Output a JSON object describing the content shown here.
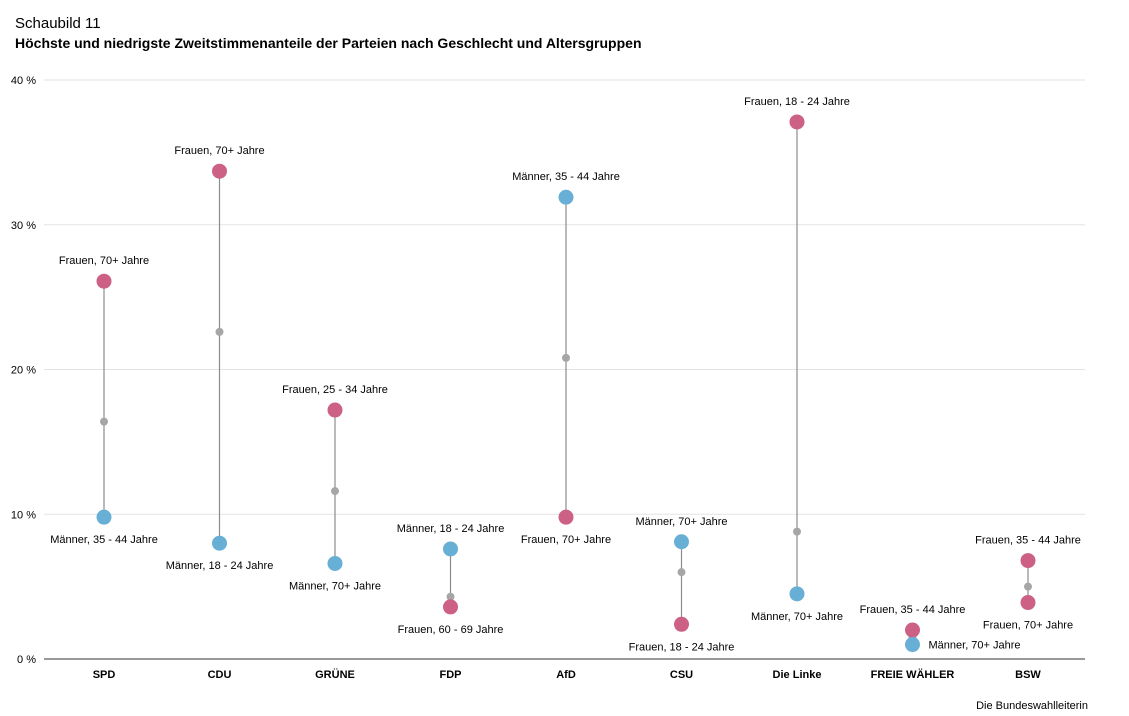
{
  "header": {
    "supertitle": "Schaubild 11",
    "title": "Höchste und niedrigste Zweitstimmenanteile der Parteien nach Geschlecht und Altersgruppen"
  },
  "source": "Die Bundeswahlleiterin",
  "colors": {
    "frauen": "#cc6085",
    "maenner": "#68afd5",
    "average": "#a6a6a6",
    "connector": "#8c8c8c",
    "grid": "#e3e3e3",
    "axis": "#333333"
  },
  "chart_data": {
    "type": "scatter",
    "subtype": "dumbbell",
    "ylim": [
      0,
      40
    ],
    "yticks": [
      0,
      10,
      20,
      30,
      40
    ],
    "ytick_labels": [
      "0 %",
      "10 %",
      "20 %",
      "30 %",
      "40 %"
    ],
    "grid": true,
    "categories": [
      "SPD",
      "CDU",
      "GRÜNE",
      "FDP",
      "AfD",
      "CSU",
      "Die Linke",
      "FREIE WÄHLER",
      "BSW"
    ],
    "parties": [
      {
        "party": "SPD",
        "high": {
          "value": 26.1,
          "group": "frauen",
          "label": "Frauen, 70+ Jahre"
        },
        "low": {
          "value": 9.8,
          "group": "maenner",
          "label": "Männer, 35 - 44 Jahre"
        },
        "average": 16.4
      },
      {
        "party": "CDU",
        "high": {
          "value": 33.7,
          "group": "frauen",
          "label": "Frauen, 70+ Jahre"
        },
        "low": {
          "value": 8.0,
          "group": "maenner",
          "label": "Männer, 18 - 24 Jahre"
        },
        "average": 22.6
      },
      {
        "party": "GRÜNE",
        "high": {
          "value": 17.2,
          "group": "frauen",
          "label": "Frauen, 25 - 34 Jahre"
        },
        "low": {
          "value": 6.6,
          "group": "maenner",
          "label": "Männer, 70+ Jahre"
        },
        "average": 11.6
      },
      {
        "party": "FDP",
        "high": {
          "value": 7.6,
          "group": "maenner",
          "label": "Männer, 18 - 24 Jahre"
        },
        "low": {
          "value": 3.6,
          "group": "frauen",
          "label": "Frauen, 60 - 69 Jahre"
        },
        "average": 4.3
      },
      {
        "party": "AfD",
        "high": {
          "value": 31.9,
          "group": "maenner",
          "label": "Männer, 35 - 44 Jahre"
        },
        "low": {
          "value": 9.8,
          "group": "frauen",
          "label": "Frauen, 70+ Jahre"
        },
        "average": 20.8
      },
      {
        "party": "CSU",
        "high": {
          "value": 8.1,
          "group": "maenner",
          "label": "Männer, 70+ Jahre"
        },
        "low": {
          "value": 2.4,
          "group": "frauen",
          "label": "Frauen, 18 - 24 Jahre"
        },
        "average": 6.0
      },
      {
        "party": "Die Linke",
        "high": {
          "value": 37.1,
          "group": "frauen",
          "label": "Frauen, 18 - 24 Jahre"
        },
        "low": {
          "value": 4.5,
          "group": "maenner",
          "label": "Männer, 70+ Jahre"
        },
        "average": 8.8
      },
      {
        "party": "FREIE WÄHLER",
        "high": {
          "value": 2.0,
          "group": "frauen",
          "label": "Frauen, 35 - 44 Jahre"
        },
        "low": {
          "value": 1.0,
          "group": "maenner",
          "label": "Männer, 70+ Jahre"
        },
        "average": 1.5
      },
      {
        "party": "BSW",
        "high": {
          "value": 6.8,
          "group": "frauen",
          "label": "Frauen, 35 - 44 Jahre"
        },
        "low": {
          "value": 3.9,
          "group": "frauen",
          "label": "Frauen, 70+ Jahre"
        },
        "average": 5.0
      }
    ]
  }
}
